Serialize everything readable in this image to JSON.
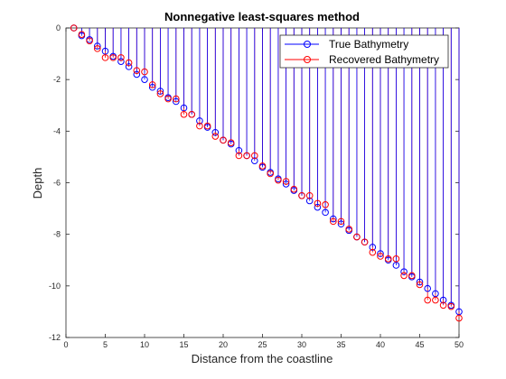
{
  "chart_data": {
    "type": "scatter",
    "title": "Nonnegative least-squares method",
    "xlabel": "Distance from the coastline",
    "ylabel": "Depth",
    "xlim": [
      0,
      50
    ],
    "ylim": [
      -12,
      0
    ],
    "xticks": [
      0,
      5,
      10,
      15,
      20,
      25,
      30,
      35,
      40,
      45,
      50
    ],
    "yticks": [
      0,
      -2,
      -4,
      -6,
      -8,
      -10,
      -12
    ],
    "grid": false,
    "legend_position": "top-right",
    "colors": {
      "true": "#0000ff",
      "recovered": "#ff0000",
      "axis": "#262626"
    },
    "x": [
      1,
      2,
      3,
      4,
      5,
      6,
      7,
      8,
      9,
      10,
      11,
      12,
      13,
      14,
      15,
      16,
      17,
      18,
      19,
      20,
      21,
      22,
      23,
      24,
      25,
      26,
      27,
      28,
      29,
      30,
      31,
      32,
      33,
      34,
      35,
      36,
      37,
      38,
      39,
      40,
      41,
      42,
      43,
      44,
      45,
      46,
      47,
      48,
      49,
      50
    ],
    "series": [
      {
        "name": "True Bathymetry",
        "color": "#0000ff",
        "values": [
          0,
          -0.3,
          -0.45,
          -0.7,
          -0.9,
          -1.1,
          -1.3,
          -1.5,
          -1.8,
          -2.0,
          -2.3,
          -2.45,
          -2.7,
          -2.85,
          -3.1,
          -3.35,
          -3.6,
          -3.85,
          -4.05,
          -4.35,
          -4.5,
          -4.75,
          -4.95,
          -5.15,
          -5.4,
          -5.6,
          -5.85,
          -6.05,
          -6.3,
          -6.5,
          -6.7,
          -6.95,
          -7.15,
          -7.4,
          -7.6,
          -7.85,
          -8.1,
          -8.3,
          -8.5,
          -8.75,
          -9.0,
          -9.2,
          -9.45,
          -9.65,
          -9.85,
          -10.1,
          -10.3,
          -10.55,
          -10.75,
          -11.0
        ]
      },
      {
        "name": "Recovered Bathymetry",
        "color": "#ff0000",
        "values": [
          0,
          -0.25,
          -0.5,
          -0.8,
          -1.15,
          -1.15,
          -1.15,
          -1.35,
          -1.65,
          -1.7,
          -2.2,
          -2.55,
          -2.75,
          -2.75,
          -3.35,
          -3.35,
          -3.8,
          -3.8,
          -4.2,
          -4.35,
          -4.45,
          -4.95,
          -4.95,
          -4.95,
          -5.35,
          -5.65,
          -5.9,
          -5.95,
          -6.25,
          -6.5,
          -6.5,
          -6.8,
          -6.85,
          -7.5,
          -7.5,
          -7.8,
          -8.1,
          -8.3,
          -8.7,
          -8.85,
          -8.95,
          -8.95,
          -9.6,
          -9.6,
          -9.95,
          -10.55,
          -10.55,
          -10.75,
          -10.8,
          -11.25
        ]
      }
    ]
  }
}
